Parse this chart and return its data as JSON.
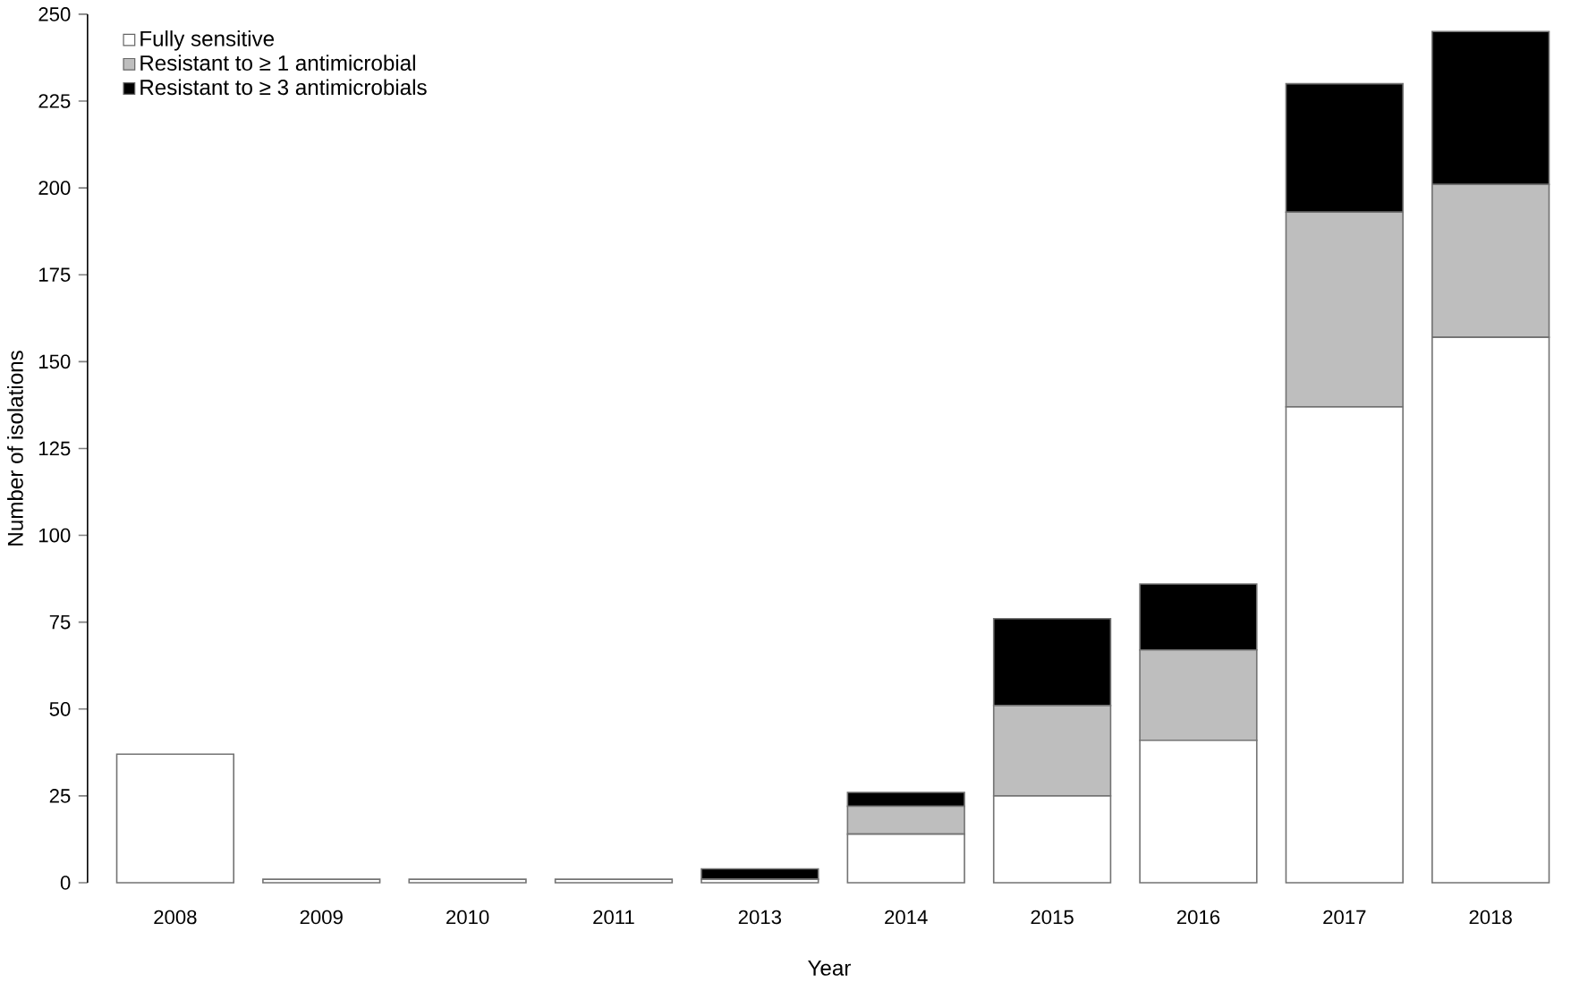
{
  "chart_data": {
    "type": "bar",
    "stacked": true,
    "xlabel": "Year",
    "ylabel": "Number of isolations",
    "categories": [
      "2008",
      "2009",
      "2010",
      "2011",
      "2013",
      "2014",
      "2015",
      "2016",
      "2017",
      "2018"
    ],
    "series": [
      {
        "name": "Fully sensitive",
        "color": "#ffffff",
        "values": [
          37,
          1,
          1,
          1,
          1,
          14,
          25,
          41,
          137,
          157
        ]
      },
      {
        "name": "Resistant to ≥ 1 antimicrobial",
        "color": "#bebebe",
        "values": [
          0,
          0,
          0,
          0,
          0,
          8,
          26,
          26,
          56,
          44
        ]
      },
      {
        "name": "Resistant to ≥ 3 antimicrobials",
        "color": "#000000",
        "values": [
          0,
          0,
          0,
          0,
          3,
          4,
          25,
          19,
          37,
          44
        ]
      }
    ],
    "ylim": [
      0,
      250
    ],
    "yticks": [
      0,
      25,
      50,
      75,
      100,
      125,
      150,
      175,
      200,
      225,
      250
    ],
    "grid": false,
    "legend": "top left"
  }
}
